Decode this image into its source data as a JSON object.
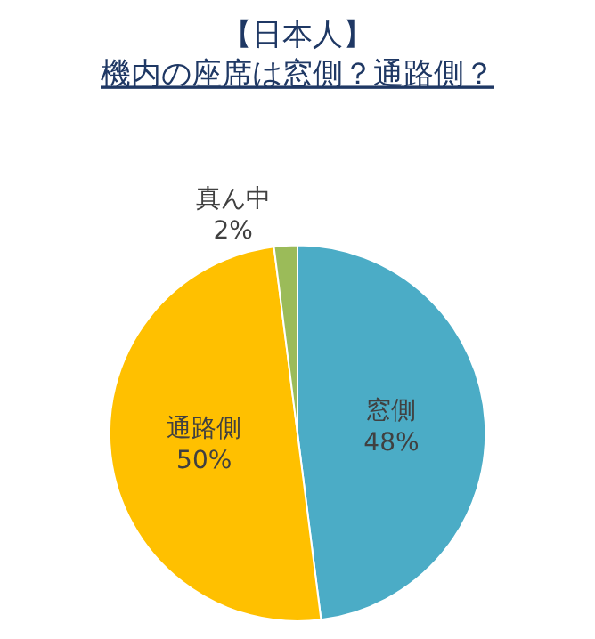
{
  "chart_data": {
    "type": "pie",
    "title": "【日本人】",
    "subtitle": "機内の座席は窓側？通路側？",
    "categories": [
      "窓側",
      "通路側",
      "真ん中"
    ],
    "values": [
      48,
      50,
      2
    ],
    "colors": [
      "#4bacc6",
      "#ffc000",
      "#9bbb59"
    ],
    "value_labels": [
      "48%",
      "50%",
      "2%"
    ],
    "legend": false
  }
}
